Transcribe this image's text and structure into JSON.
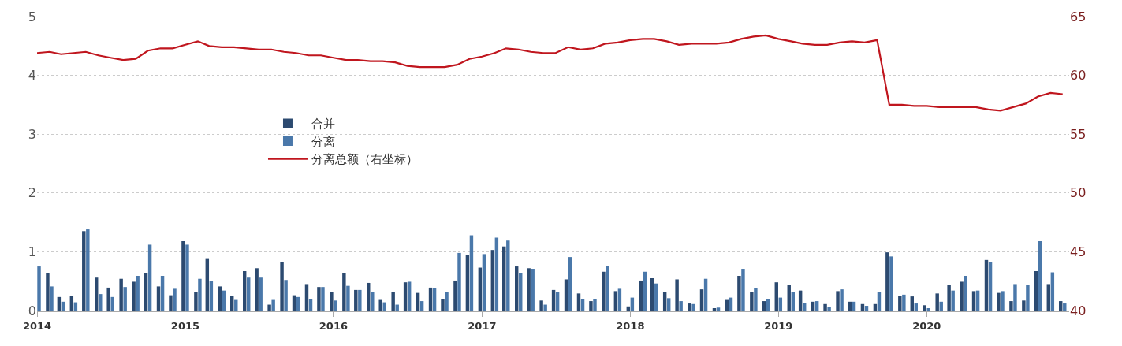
{
  "chart_data": {
    "type": "bar",
    "x": [
      "2014-01",
      "2014-02",
      "2014-03",
      "2014-04",
      "2014-05",
      "2014-06",
      "2014-07",
      "2014-08",
      "2014-09",
      "2014-10",
      "2014-11",
      "2014-12",
      "2015-01",
      "2015-02",
      "2015-03",
      "2015-04",
      "2015-05",
      "2015-06",
      "2015-07",
      "2015-08",
      "2015-09",
      "2015-10",
      "2015-11",
      "2015-12",
      "2016-01",
      "2016-02",
      "2016-03",
      "2016-04",
      "2016-05",
      "2016-06",
      "2016-07",
      "2016-08",
      "2016-09",
      "2016-10",
      "2016-11",
      "2016-12",
      "2017-01",
      "2017-02",
      "2017-03",
      "2017-04",
      "2017-05",
      "2017-06",
      "2017-07",
      "2017-08",
      "2017-09",
      "2017-10",
      "2017-11",
      "2017-12",
      "2018-01",
      "2018-02",
      "2018-03",
      "2018-04",
      "2018-05",
      "2018-06",
      "2018-07",
      "2018-08",
      "2018-09",
      "2018-10",
      "2018-11",
      "2018-12",
      "2019-01",
      "2019-02",
      "2019-03",
      "2019-04",
      "2019-05",
      "2019-06",
      "2019-07",
      "2019-08",
      "2019-09",
      "2019-10",
      "2019-11",
      "2019-12",
      "2020-01",
      "2020-02",
      "2020-03",
      "2020-04",
      "2020-05",
      "2020-06",
      "2020-07",
      "2020-08",
      "2020-09",
      "2020-10",
      "2020-11",
      "2020-12"
    ],
    "series": [
      {
        "name": "合并",
        "color": "#2c4a70",
        "values": [
          null,
          0.64,
          0.23,
          0.25,
          1.35,
          0.56,
          0.39,
          0.54,
          0.49,
          0.64,
          0.41,
          0.26,
          1.18,
          0.32,
          0.89,
          0.41,
          0.25,
          0.67,
          0.72,
          0.1,
          0.82,
          0.26,
          0.45,
          0.4,
          0.32,
          0.64,
          0.35,
          0.47,
          0.18,
          0.31,
          0.48,
          0.3,
          0.39,
          0.19,
          0.51,
          0.94,
          0.73,
          1.03,
          1.09,
          0.75,
          0.72,
          0.17,
          0.35,
          0.53,
          0.29,
          0.16,
          0.66,
          0.33,
          0.07,
          0.51,
          0.55,
          0.31,
          0.53,
          0.12,
          0.36,
          0.04,
          0.18,
          0.59,
          0.32,
          0.16,
          0.48,
          0.44,
          0.34,
          0.15,
          0.11,
          0.33,
          0.15,
          0.11,
          0.11,
          0.99,
          0.25,
          0.24,
          0.09,
          0.29,
          0.43,
          0.49,
          0.33,
          0.86,
          0.3,
          0.16,
          0.17,
          0.67,
          0.45,
          0.16
        ]
      },
      {
        "name": "分离",
        "color": "#4a78aa",
        "values": [
          0.75,
          0.41,
          0.15,
          0.14,
          1.38,
          0.28,
          0.23,
          0.4,
          0.59,
          1.12,
          0.59,
          0.37,
          1.12,
          0.54,
          0.5,
          0.34,
          0.18,
          0.56,
          0.56,
          0.18,
          0.52,
          0.23,
          0.19,
          0.4,
          0.17,
          0.42,
          0.35,
          0.32,
          0.14,
          0.1,
          0.49,
          0.16,
          0.38,
          0.32,
          0.98,
          1.28,
          0.96,
          1.24,
          1.19,
          0.63,
          0.71,
          0.1,
          0.31,
          0.91,
          0.2,
          0.19,
          0.76,
          0.37,
          0.22,
          0.66,
          0.46,
          0.21,
          0.16,
          0.11,
          0.54,
          0.05,
          0.22,
          0.71,
          0.38,
          0.2,
          0.22,
          0.31,
          0.13,
          0.16,
          0.06,
          0.36,
          0.15,
          0.08,
          0.32,
          0.92,
          0.27,
          0.12,
          0.04,
          0.15,
          0.34,
          0.59,
          0.34,
          0.82,
          0.33,
          0.45,
          0.44,
          1.18,
          0.65,
          0.12
        ]
      },
      {
        "name": "分离总额（右坐标）",
        "type": "line",
        "axis": "y2",
        "color": "#c0161e",
        "values": [
          61.9,
          62.0,
          61.8,
          61.9,
          62.0,
          61.7,
          61.5,
          61.3,
          61.4,
          62.1,
          62.3,
          62.3,
          62.6,
          62.9,
          62.5,
          62.4,
          62.4,
          62.3,
          62.2,
          62.2,
          62.0,
          61.9,
          61.7,
          61.7,
          61.5,
          61.3,
          61.3,
          61.2,
          61.2,
          61.1,
          60.8,
          60.7,
          60.7,
          60.7,
          60.9,
          61.4,
          61.6,
          61.9,
          62.3,
          62.2,
          62.0,
          61.9,
          61.9,
          62.4,
          62.2,
          62.3,
          62.7,
          62.8,
          63.0,
          63.1,
          63.1,
          62.9,
          62.6,
          62.7,
          62.7,
          62.7,
          62.8,
          63.1,
          63.3,
          63.4,
          63.1,
          62.9,
          62.7,
          62.6,
          62.6,
          62.8,
          62.9,
          62.8,
          63.0,
          57.5,
          57.5,
          57.4,
          57.4,
          57.3,
          57.3,
          57.3,
          57.3,
          57.1,
          57.0,
          57.3,
          57.6,
          58.2,
          58.5,
          58.4
        ]
      }
    ],
    "xlim": [
      "2014-01-01",
      "2020-12-17"
    ],
    "xticks": [
      "2014",
      "2015",
      "2016",
      "2017",
      "2018",
      "2019",
      "2020"
    ],
    "ylim": [
      0,
      5
    ],
    "yticks": [
      0,
      1,
      2,
      3,
      4,
      5
    ],
    "y2lim": [
      40,
      65
    ],
    "y2ticks": [
      40,
      45,
      50,
      55,
      60,
      65
    ],
    "grid": "y",
    "legend": "left",
    "marker": "none",
    "line_style": "solid"
  }
}
